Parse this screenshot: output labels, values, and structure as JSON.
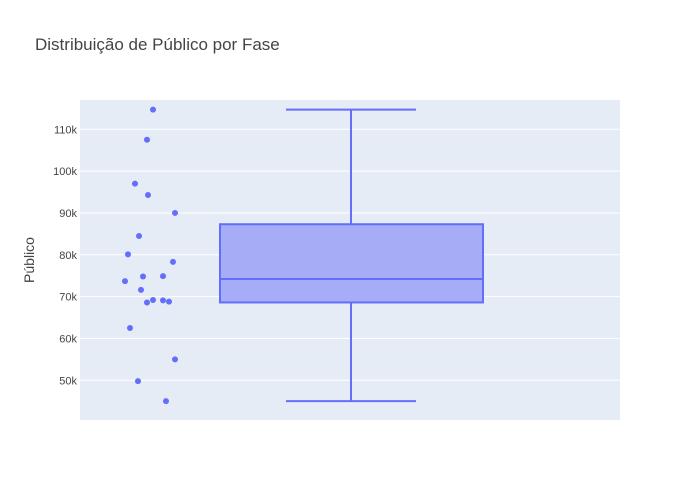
{
  "chart_data": {
    "type": "box",
    "title": "Distribuição de Público por Fase",
    "ylabel": "Público",
    "xlabel": "",
    "ylim": [
      40500,
      117000
    ],
    "yticks": [
      {
        "value": 50000,
        "label": "50k"
      },
      {
        "value": 60000,
        "label": "60k"
      },
      {
        "value": 70000,
        "label": "70k"
      },
      {
        "value": 80000,
        "label": "80k"
      },
      {
        "value": 90000,
        "label": "90k"
      },
      {
        "value": 100000,
        "label": "100k"
      },
      {
        "value": 110000,
        "label": "110k"
      }
    ],
    "grid": true,
    "colors": {
      "plot_bg": "#e5ecf6",
      "box_line": "#636efa",
      "box_fill": "#a3a9f7",
      "points": "#636efa",
      "grid": "#ffffff"
    },
    "box": {
      "min": 45000,
      "q1": 68600,
      "median": 74200,
      "q3": 87300,
      "max": 114700
    },
    "points": [
      114700,
      107500,
      97000,
      94300,
      90000,
      84500,
      80100,
      78300,
      74900,
      74800,
      73700,
      71600,
      69200,
      69100,
      68800,
      68600,
      62500,
      55000,
      49800,
      45000
    ]
  }
}
